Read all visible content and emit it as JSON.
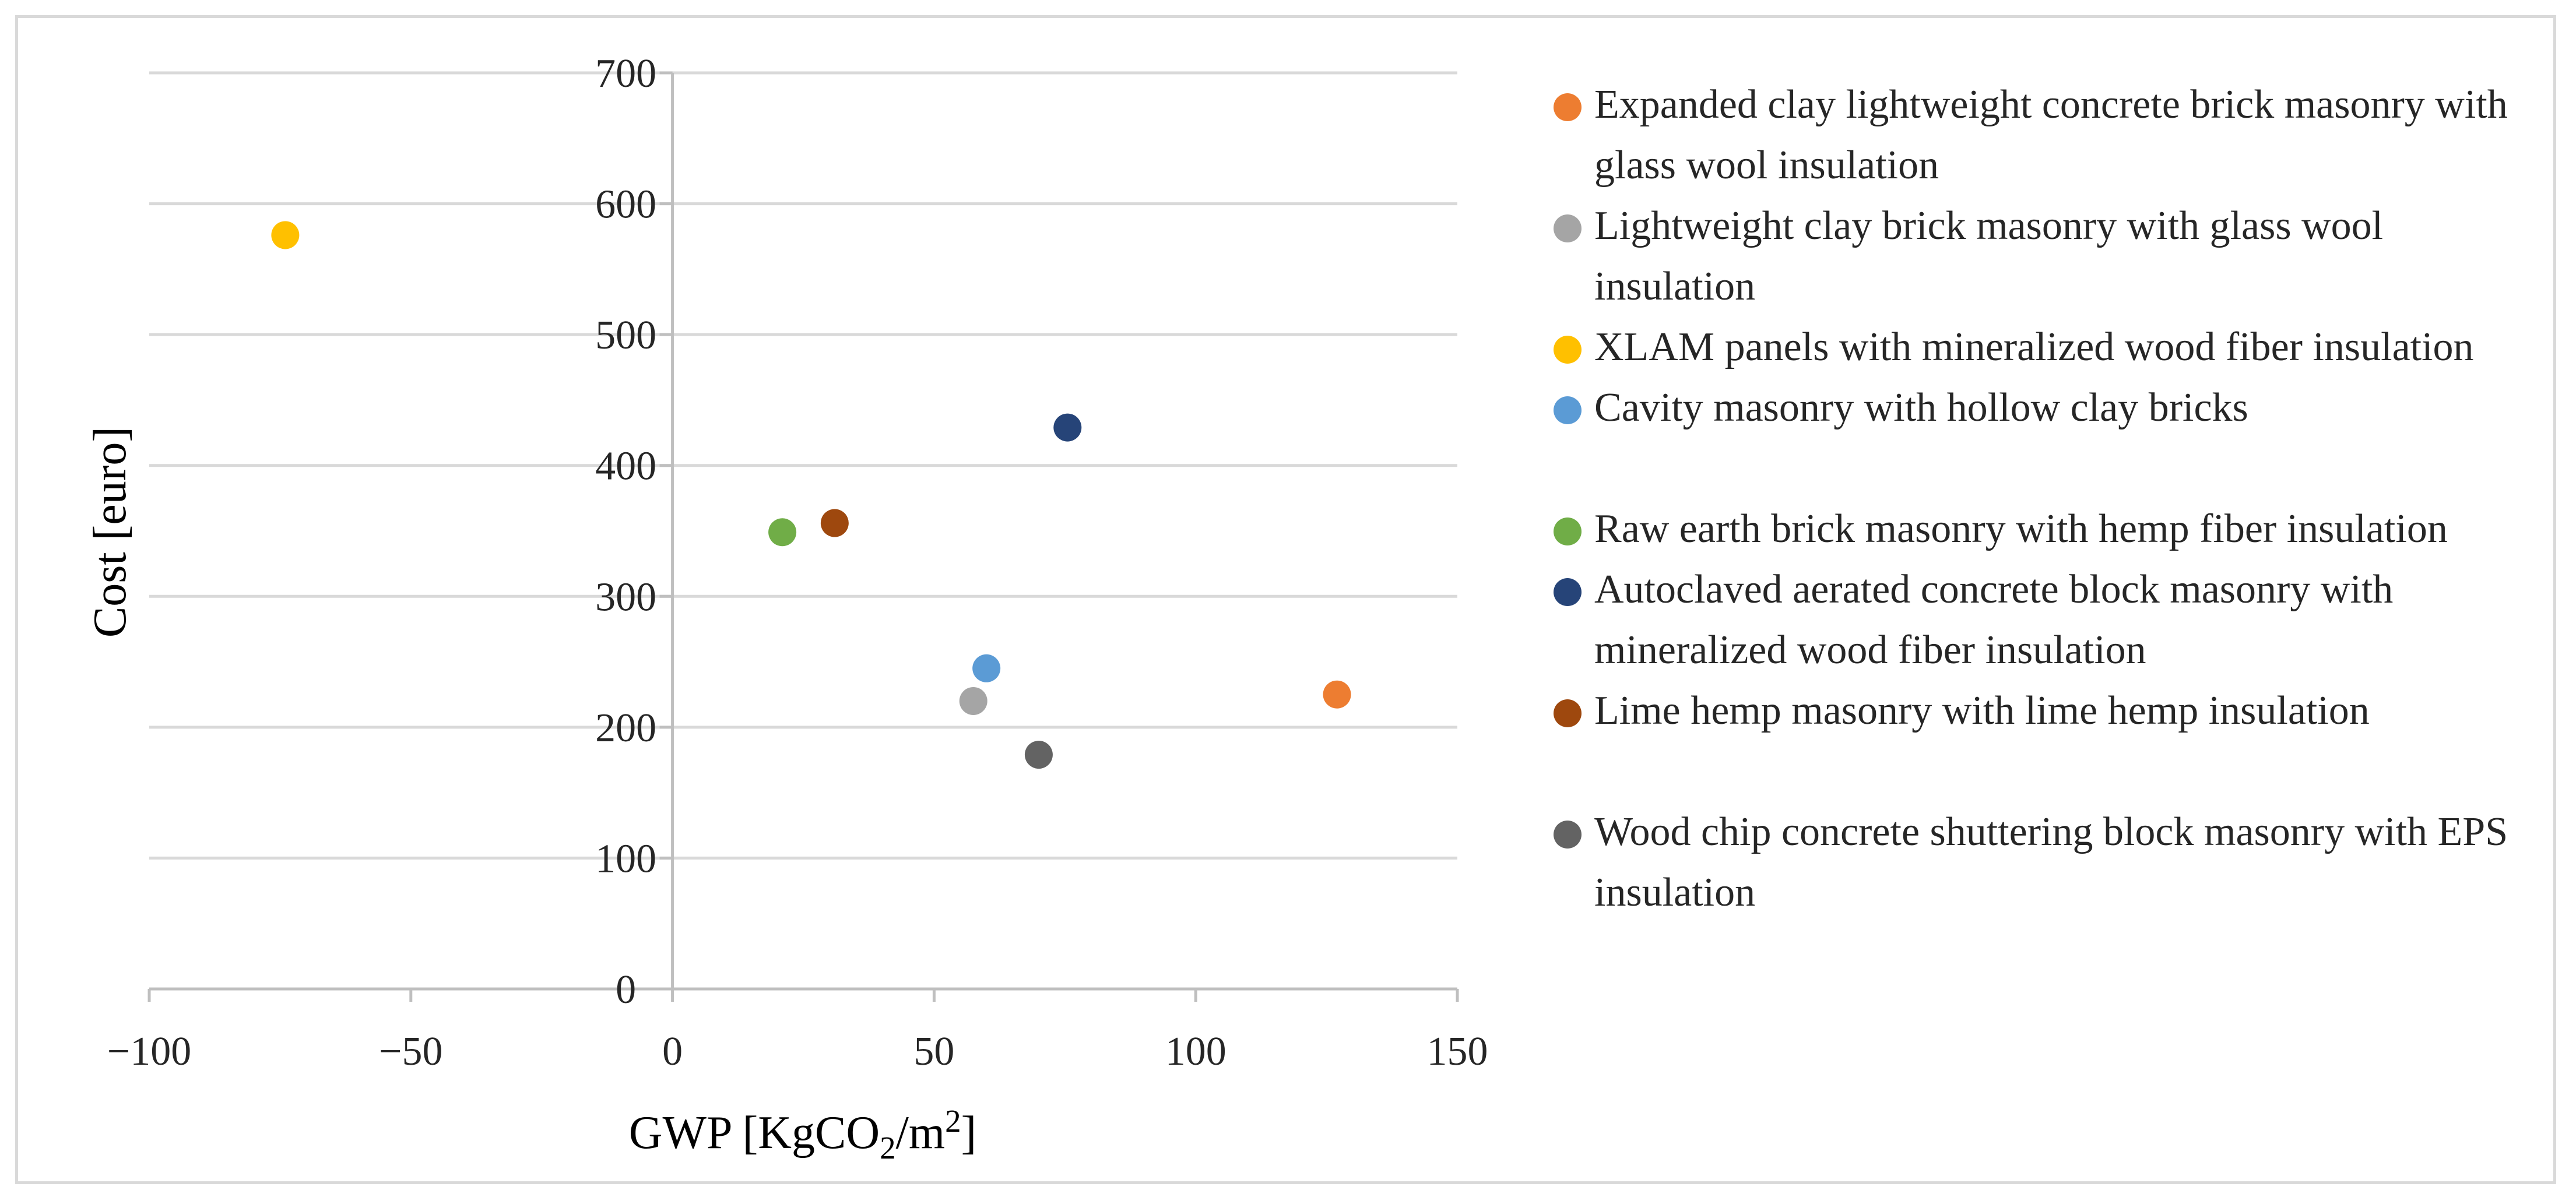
{
  "chart_data": {
    "type": "scatter",
    "title": "",
    "xlabel": "GWP [KgCO",
    "xlabel_sub": "2",
    "xlabel_mid": "/m",
    "xlabel_sup": "2",
    "xlabel_end": "]",
    "ylabel": "Cost [euro]",
    "xlim": [
      -100,
      150
    ],
    "ylim": [
      0,
      700
    ],
    "x_ticks": [
      -100,
      -50,
      0,
      50,
      100,
      150
    ],
    "x_tick_labels": [
      "−100",
      "−50",
      "0",
      "50",
      "100",
      "150"
    ],
    "y_ticks": [
      0,
      100,
      200,
      300,
      400,
      500,
      600,
      700
    ],
    "y_tick_labels": [
      "0",
      "100",
      "200",
      "300",
      "400",
      "500",
      "600",
      "700"
    ],
    "grid": "horizontal",
    "legend_position": "right",
    "series": [
      {
        "name": "Expanded clay lightweight concrete brick masonry with glass wool insulation",
        "x": 127,
        "y": 225,
        "color": "#ed7d31"
      },
      {
        "name": "Lightweight clay brick masonry with glass wool insulation",
        "x": 57.5,
        "y": 220,
        "color": "#a5a5a5"
      },
      {
        "name": "XLAM panels with mineralized wood fiber insulation",
        "x": -74,
        "y": 576,
        "color": "#ffc000"
      },
      {
        "name": "Cavity masonry with hollow clay bricks",
        "x": 60,
        "y": 245,
        "color": "#5b9bd5"
      },
      {
        "name": "Raw earth brick masonry with hemp fiber insulation",
        "x": 21,
        "y": 349,
        "color": "#70ad47"
      },
      {
        "name": "Autoclaved aerated concrete block masonry with mineralized wood fiber insulation",
        "x": 75.5,
        "y": 429,
        "color": "#264478"
      },
      {
        "name": "Lime hemp masonry with lime hemp insulation",
        "x": 31,
        "y": 356,
        "color": "#9e480e"
      },
      {
        "name": "Wood chip concrete shuttering block masonry with EPS insulation",
        "x": 70,
        "y": 179,
        "color": "#636363"
      }
    ]
  }
}
